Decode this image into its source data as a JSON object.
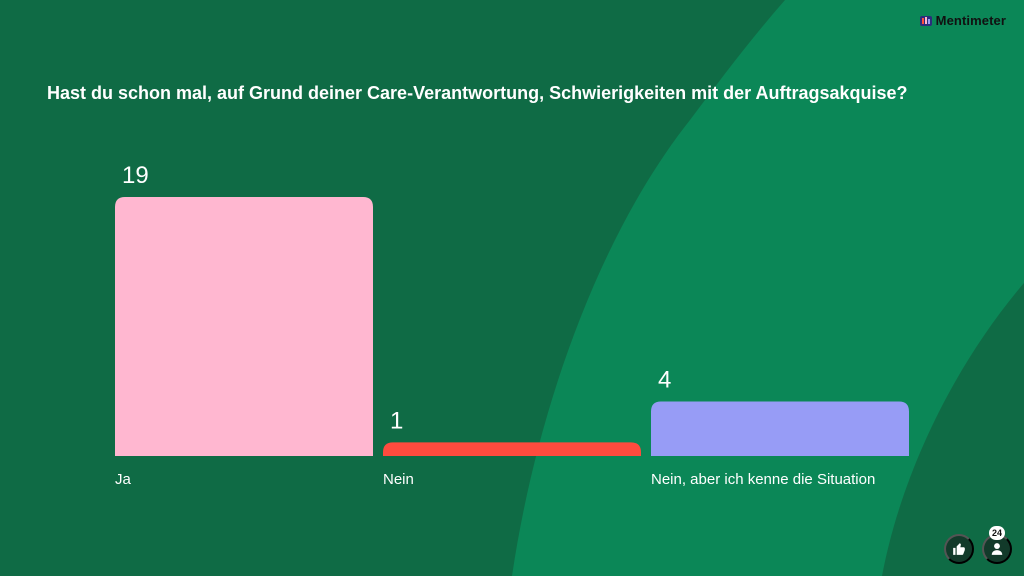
{
  "brand": {
    "name": "Mentimeter"
  },
  "question": "Hast du schon mal, auf Grund deiner Care-Verantwortung, Schwierigkeiten mit der Auftragsakquise?",
  "chart_data": {
    "type": "bar",
    "categories": [
      "Ja",
      "Nein",
      "Nein, aber ich kenne die Situation"
    ],
    "values": [
      19,
      1,
      4
    ],
    "colors": [
      "#ffb7d0",
      "#ff4b3e",
      "#979cf6"
    ],
    "title": "Hast du schon mal, auf Grund deiner Care-Verantwortung, Schwierigkeiten mit der Auftragsakquise?",
    "xlabel": "",
    "ylabel": "",
    "ylim": [
      0,
      19
    ],
    "grid": false,
    "legend": "none"
  },
  "controls": {
    "participant_count": "24"
  },
  "colors": {
    "background_dark": "#0f6b45",
    "background_light": "#0b8757",
    "button": "#123a2a",
    "text": "#ffffff"
  }
}
